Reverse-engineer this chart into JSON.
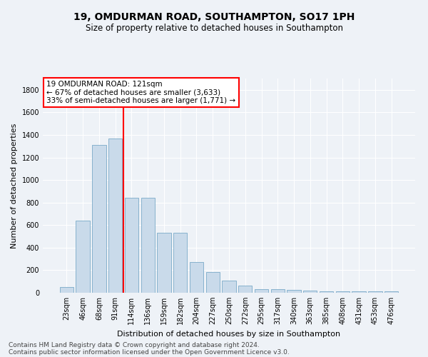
{
  "title": "19, OMDURMAN ROAD, SOUTHAMPTON, SO17 1PH",
  "subtitle": "Size of property relative to detached houses in Southampton",
  "xlabel": "Distribution of detached houses by size in Southampton",
  "ylabel": "Number of detached properties",
  "categories": [
    "23sqm",
    "46sqm",
    "68sqm",
    "91sqm",
    "114sqm",
    "136sqm",
    "159sqm",
    "182sqm",
    "204sqm",
    "227sqm",
    "250sqm",
    "272sqm",
    "295sqm",
    "317sqm",
    "340sqm",
    "363sqm",
    "385sqm",
    "408sqm",
    "431sqm",
    "453sqm",
    "476sqm"
  ],
  "values": [
    50,
    640,
    1310,
    1370,
    840,
    840,
    530,
    530,
    275,
    185,
    105,
    65,
    30,
    30,
    25,
    18,
    15,
    12,
    10,
    10,
    10
  ],
  "bar_color": "#c9daea",
  "bar_edge_color": "#7aaac8",
  "highlight_line_color": "red",
  "highlight_bar_index": 4,
  "annotation_text": "19 OMDURMAN ROAD: 121sqm\n← 67% of detached houses are smaller (3,633)\n33% of semi-detached houses are larger (1,771) →",
  "annotation_box_color": "white",
  "annotation_box_edge": "red",
  "ylim": [
    0,
    1900
  ],
  "yticks": [
    0,
    200,
    400,
    600,
    800,
    1000,
    1200,
    1400,
    1600,
    1800
  ],
  "footer_line1": "Contains HM Land Registry data © Crown copyright and database right 2024.",
  "footer_line2": "Contains public sector information licensed under the Open Government Licence v3.0.",
  "bg_color": "#eef2f7",
  "grid_color": "#ffffff",
  "title_fontsize": 10,
  "subtitle_fontsize": 8.5,
  "xlabel_fontsize": 8,
  "ylabel_fontsize": 8,
  "tick_fontsize": 7,
  "annotation_fontsize": 7.5,
  "footer_fontsize": 6.5
}
